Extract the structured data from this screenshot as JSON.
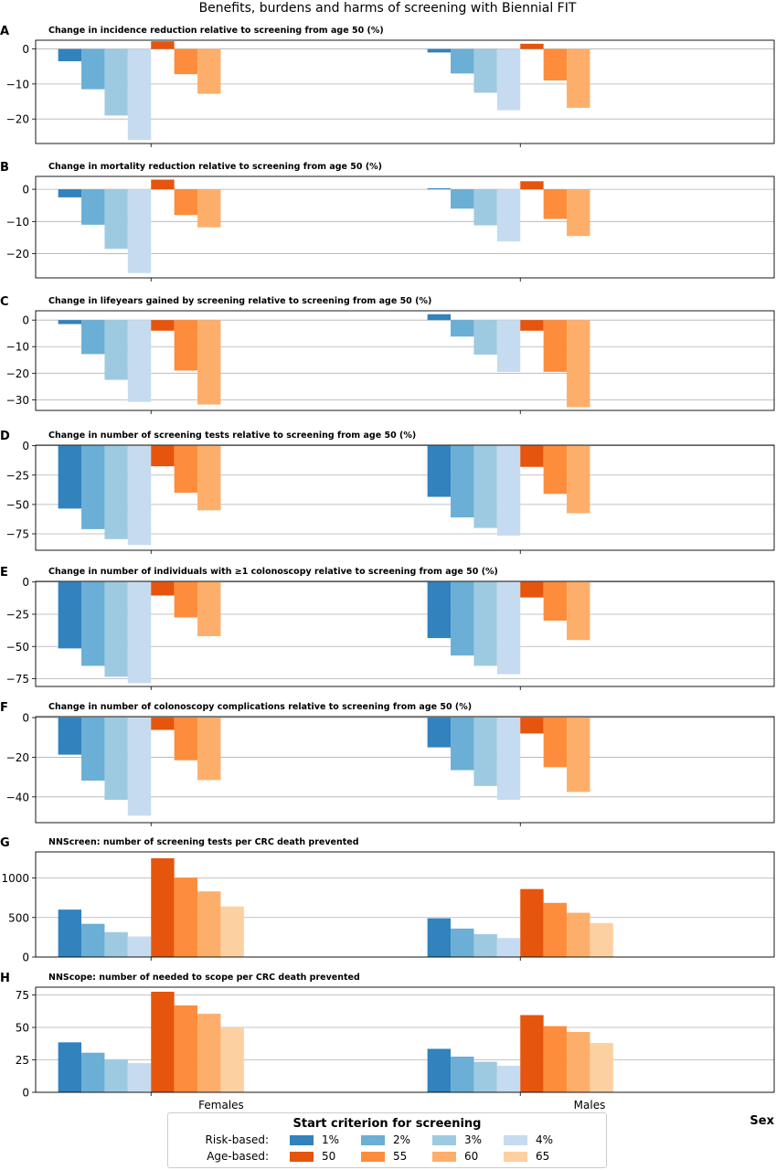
{
  "figure_title": "Benefits, burdens and harms of screening with Biennial FIT",
  "x_categories": [
    "Females",
    "Males"
  ],
  "x_axis_label": "Sex",
  "legend": {
    "title": "Start criterion for screening",
    "rows": [
      {
        "label": "Risk-based:",
        "items": [
          {
            "label": "1%",
            "color": "#3182bd"
          },
          {
            "label": "2%",
            "color": "#6baed6"
          },
          {
            "label": "3%",
            "color": "#9ecae1"
          },
          {
            "label": "4%",
            "color": "#c6dbef"
          }
        ]
      },
      {
        "label": "Age-based:",
        "items": [
          {
            "label": "50",
            "color": "#e6550d"
          },
          {
            "label": "55",
            "color": "#fd8d3c"
          },
          {
            "label": "60",
            "color": "#fdae6b"
          },
          {
            "label": "65",
            "color": "#fdd0a2"
          }
        ]
      }
    ]
  },
  "series_colors": [
    "#3182bd",
    "#6baed6",
    "#9ecae1",
    "#c6dbef",
    "#e6550d",
    "#fd8d3c",
    "#fdae6b",
    "#fdd0a2"
  ],
  "chart_data": [
    {
      "type": "bar",
      "panel": "A",
      "title": "Change in incidence reduction relative to screening from age 50 (%)",
      "categories": [
        "Females",
        "Males"
      ],
      "ylim": [
        -27,
        2.5
      ],
      "yticks": [
        0,
        -10,
        -20
      ],
      "ytick_labels": [
        "0",
        "−10",
        "−20"
      ],
      "grid": true,
      "series": [
        {
          "name": "1%",
          "values": [
            -3.5,
            -1
          ]
        },
        {
          "name": "2%",
          "values": [
            -11.5,
            -7
          ]
        },
        {
          "name": "3%",
          "values": [
            -19,
            -12.5
          ]
        },
        {
          "name": "4%",
          "values": [
            -26,
            -17.5
          ]
        },
        {
          "name": "50",
          "values": [
            2.2,
            1.5
          ]
        },
        {
          "name": "55",
          "values": [
            -7.2,
            -9
          ]
        },
        {
          "name": "60",
          "values": [
            -12.8,
            -16.8
          ]
        },
        {
          "name": "65",
          "values": [
            null,
            null
          ]
        }
      ]
    },
    {
      "type": "bar",
      "panel": "B",
      "title": "Change in mortality reduction relative to screening from age 50 (%)",
      "categories": [
        "Females",
        "Males"
      ],
      "ylim": [
        -27.5,
        4
      ],
      "yticks": [
        0,
        -10,
        -20
      ],
      "ytick_labels": [
        "0",
        "−10",
        "−20"
      ],
      "grid": true,
      "series": [
        {
          "name": "1%",
          "values": [
            -2.5,
            0.3
          ]
        },
        {
          "name": "2%",
          "values": [
            -11,
            -6
          ]
        },
        {
          "name": "3%",
          "values": [
            -18.5,
            -11.2
          ]
        },
        {
          "name": "4%",
          "values": [
            -26,
            -16.2
          ]
        },
        {
          "name": "50",
          "values": [
            3,
            2.5
          ]
        },
        {
          "name": "55",
          "values": [
            -8,
            -9.2
          ]
        },
        {
          "name": "60",
          "values": [
            -11.8,
            -14.5
          ]
        },
        {
          "name": "65",
          "values": [
            null,
            null
          ]
        }
      ]
    },
    {
      "type": "bar",
      "panel": "C",
      "title": "Change in lifeyears gained by screening relative to screening from age 50 (%)",
      "categories": [
        "Females",
        "Males"
      ],
      "ylim": [
        -34,
        3.5
      ],
      "yticks": [
        0,
        -10,
        -20,
        -30
      ],
      "ytick_labels": [
        "0",
        "−10",
        "−20",
        "−30"
      ],
      "grid": true,
      "series": [
        {
          "name": "1%",
          "values": [
            -1.5,
            2.2
          ]
        },
        {
          "name": "2%",
          "values": [
            -12.8,
            -6.2
          ]
        },
        {
          "name": "3%",
          "values": [
            -22.5,
            -13
          ]
        },
        {
          "name": "4%",
          "values": [
            -30.8,
            -19.5
          ]
        },
        {
          "name": "50",
          "values": [
            -4,
            -4
          ]
        },
        {
          "name": "55",
          "values": [
            -19,
            -19.5
          ]
        },
        {
          "name": "60",
          "values": [
            -31.8,
            -32.8
          ]
        },
        {
          "name": "65",
          "values": [
            null,
            null
          ]
        }
      ]
    },
    {
      "type": "bar",
      "panel": "D",
      "title": "Change in number of screening tests relative to screening from age 50 (%)",
      "categories": [
        "Females",
        "Males"
      ],
      "ylim": [
        -89,
        0.5
      ],
      "yticks": [
        0,
        -25,
        -50,
        -75
      ],
      "ytick_labels": [
        "0",
        "−25",
        "−50",
        "−75"
      ],
      "grid": true,
      "series": [
        {
          "name": "1%",
          "values": [
            -53.5,
            -43.5
          ]
        },
        {
          "name": "2%",
          "values": [
            -71,
            -61
          ]
        },
        {
          "name": "3%",
          "values": [
            -79.5,
            -70
          ]
        },
        {
          "name": "4%",
          "values": [
            -84.5,
            -76.5
          ]
        },
        {
          "name": "50",
          "values": [
            -17.5,
            -18
          ]
        },
        {
          "name": "55",
          "values": [
            -40,
            -41
          ]
        },
        {
          "name": "60",
          "values": [
            -55,
            -57.5
          ]
        },
        {
          "name": "65",
          "values": [
            null,
            null
          ]
        }
      ]
    },
    {
      "type": "bar",
      "panel": "E",
      "title": "Change in number of individuals with  ≥1 colonoscopy relative to screening from age 50 (%)",
      "categories": [
        "Females",
        "Males"
      ],
      "ylim": [
        -81,
        0.5
      ],
      "yticks": [
        0,
        -25,
        -50,
        -75
      ],
      "ytick_labels": [
        "0",
        "−25",
        "−50",
        "−75"
      ],
      "grid": true,
      "series": [
        {
          "name": "1%",
          "values": [
            -51.5,
            -43.5
          ]
        },
        {
          "name": "2%",
          "values": [
            -65,
            -57
          ]
        },
        {
          "name": "3%",
          "values": [
            -73.5,
            -65
          ]
        },
        {
          "name": "4%",
          "values": [
            -78.5,
            -71.5
          ]
        },
        {
          "name": "50",
          "values": [
            -10.5,
            -12
          ]
        },
        {
          "name": "55",
          "values": [
            -27.5,
            -30
          ]
        },
        {
          "name": "60",
          "values": [
            -42,
            -45
          ]
        },
        {
          "name": "65",
          "values": [
            null,
            null
          ]
        }
      ]
    },
    {
      "type": "bar",
      "panel": "F",
      "title": "Change in number of colonoscopy complications relative to screening from age 50 (%)",
      "categories": [
        "Females",
        "Males"
      ],
      "ylim": [
        -53,
        0.5
      ],
      "yticks": [
        0,
        -20,
        -40
      ],
      "ytick_labels": [
        "0",
        "−20",
        "−40"
      ],
      "grid": true,
      "series": [
        {
          "name": "1%",
          "values": [
            -18.7,
            -15
          ]
        },
        {
          "name": "2%",
          "values": [
            -31.8,
            -26.5
          ]
        },
        {
          "name": "3%",
          "values": [
            -41.5,
            -34.5
          ]
        },
        {
          "name": "4%",
          "values": [
            -49.5,
            -41.5
          ]
        },
        {
          "name": "50",
          "values": [
            -6.2,
            -8
          ]
        },
        {
          "name": "55",
          "values": [
            -21.5,
            -25
          ]
        },
        {
          "name": "60",
          "values": [
            -31.5,
            -37.5
          ]
        },
        {
          "name": "65",
          "values": [
            null,
            null
          ]
        }
      ]
    },
    {
      "type": "bar",
      "panel": "G",
      "title": "NNScreen: number of screening tests per CRC death prevented",
      "categories": [
        "Females",
        "Males"
      ],
      "ylim": [
        0,
        1330
      ],
      "yticks": [
        0,
        500,
        1000
      ],
      "ytick_labels": [
        "0",
        "500",
        "1000"
      ],
      "grid": true,
      "series": [
        {
          "name": "1%",
          "values": [
            600,
            490
          ]
        },
        {
          "name": "2%",
          "values": [
            420,
            360
          ]
        },
        {
          "name": "3%",
          "values": [
            315,
            290
          ]
        },
        {
          "name": "4%",
          "values": [
            260,
            240
          ]
        },
        {
          "name": "50",
          "values": [
            1250,
            860
          ]
        },
        {
          "name": "55",
          "values": [
            1005,
            685
          ]
        },
        {
          "name": "60",
          "values": [
            830,
            560
          ]
        },
        {
          "name": "65",
          "values": [
            640,
            430
          ]
        }
      ]
    },
    {
      "type": "bar",
      "panel": "H",
      "title": "NNScope: number of needed to scope per CRC death prevented",
      "categories": [
        "Females",
        "Males"
      ],
      "ylim": [
        0,
        81
      ],
      "yticks": [
        0,
        25,
        50,
        75
      ],
      "ytick_labels": [
        "0",
        "25",
        "50",
        "75"
      ],
      "grid": true,
      "series": [
        {
          "name": "1%",
          "values": [
            38.5,
            33.5
          ]
        },
        {
          "name": "2%",
          "values": [
            30.5,
            27.5
          ]
        },
        {
          "name": "3%",
          "values": [
            25.5,
            23.5
          ]
        },
        {
          "name": "4%",
          "values": [
            22.5,
            20.5
          ]
        },
        {
          "name": "50",
          "values": [
            77.5,
            59.5
          ]
        },
        {
          "name": "55",
          "values": [
            67,
            51
          ]
        },
        {
          "name": "60",
          "values": [
            60.5,
            46.5
          ]
        },
        {
          "name": "65",
          "values": [
            50,
            38
          ]
        }
      ]
    }
  ]
}
